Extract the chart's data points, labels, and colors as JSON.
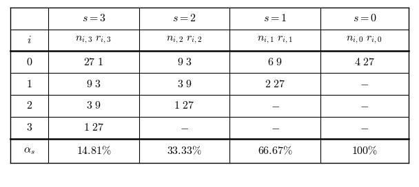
{
  "header_row1": [
    "",
    "$s = 3$",
    "$s = 2$",
    "$s = 1$",
    "$s = 0$"
  ],
  "header_row2": [
    "$i$",
    "$n_{i,3}\\ r_{i,3}$",
    "$n_{i,2}\\ r_{i,2}$",
    "$n_{i,1}\\ r_{i,1}$",
    "$n_{i,0}\\ r_{i,0}$"
  ],
  "data_rows": [
    [
      "$0$",
      "$27\\ 1$",
      "$9\\ 3$",
      "$6\\ 9$",
      "$4\\ 27$"
    ],
    [
      "$1$",
      "$9\\ 3$",
      "$3\\ 9$",
      "$2\\ 27$",
      "$-$"
    ],
    [
      "$2$",
      "$3\\ 9$",
      "$1\\ 27$",
      "$-$",
      "$-$"
    ],
    [
      "$3$",
      "$1\\ 27$",
      "$-$",
      "$-$",
      "$-$"
    ]
  ],
  "footer_row": [
    "$\\alpha_s$",
    "$14.81\\%$",
    "$33.33\\%$",
    "$66.67\\%$",
    "$100\\%$"
  ],
  "figsize": [
    6.08,
    2.72
  ],
  "dpi": 100,
  "background": "#ffffff",
  "border_color": "#000000",
  "font_size": 11.5
}
